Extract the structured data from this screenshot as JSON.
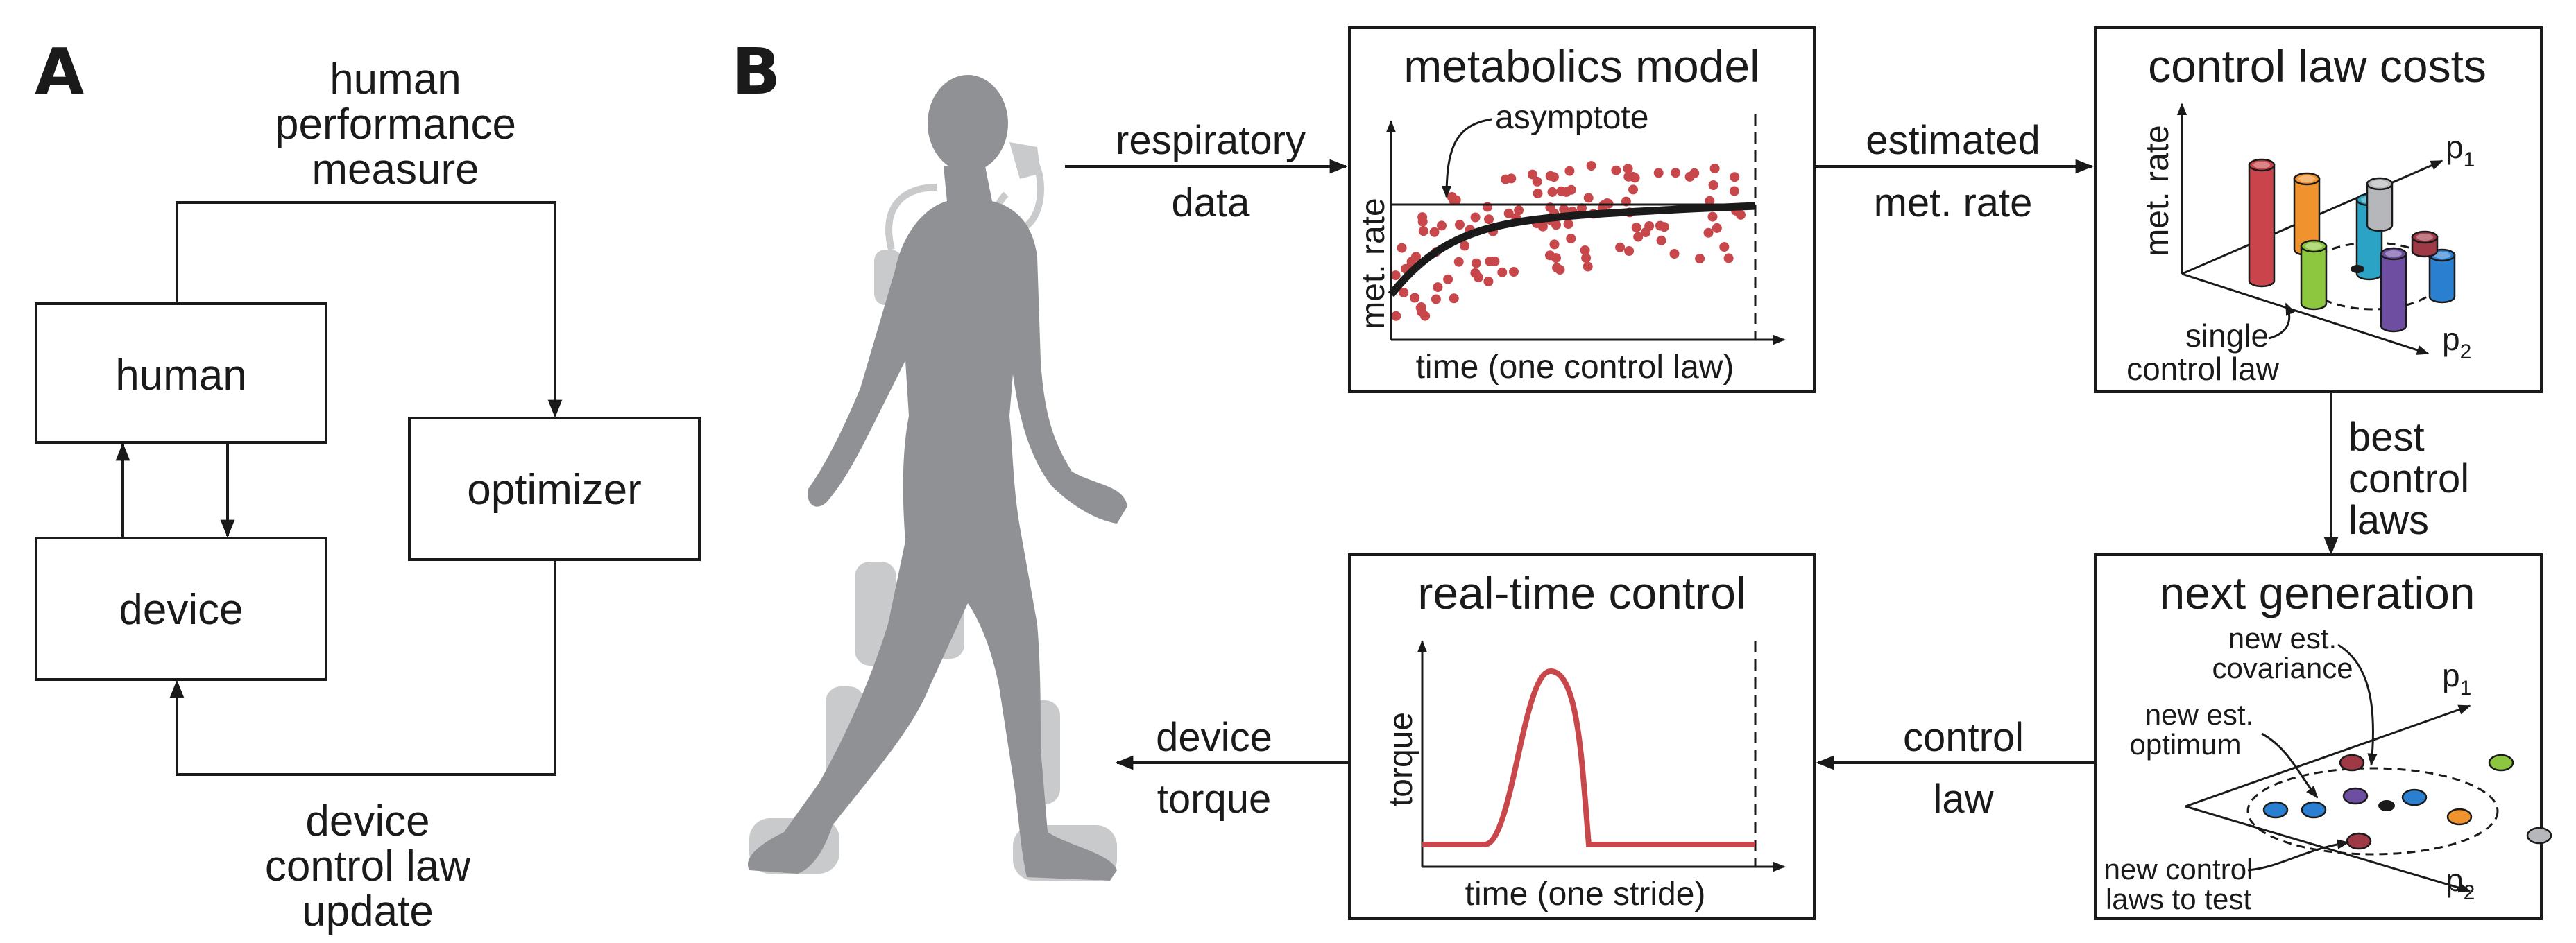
{
  "panel_a": {
    "letter": "A",
    "top_label": [
      "human",
      "performance",
      "measure"
    ],
    "human_box": "human",
    "device_box": "device",
    "optimizer_box": "optimizer",
    "bottom_label": [
      "device",
      "control law",
      "update"
    ]
  },
  "panel_b": {
    "letter": "B",
    "arrow_respiratory": [
      "respiratory",
      "data"
    ],
    "arrow_estimated": [
      "estimated",
      "met. rate"
    ],
    "arrow_best": [
      "best",
      "control",
      "laws"
    ],
    "arrow_control_law": [
      "control",
      "law"
    ],
    "arrow_device_torque": [
      "device",
      "torque"
    ],
    "metabolics": {
      "title": "metabolics model",
      "annotation": "asymptote",
      "ylabel": "met. rate",
      "xlabel": "time (one control law)"
    },
    "costs": {
      "title": "control law costs",
      "ylabel": "met. rate",
      "p1": "p",
      "p1_sub": "1",
      "p2": "p",
      "p2_sub": "2",
      "annotation": [
        "single",
        "control law"
      ]
    },
    "next_gen": {
      "title": "next generation",
      "ann_covariance": [
        "new est.",
        "covariance"
      ],
      "ann_optimum": [
        "new est.",
        "optimum"
      ],
      "ann_new_laws": [
        "new control",
        "laws to test"
      ],
      "p1": "p",
      "p1_sub": "1",
      "p2": "p",
      "p2_sub": "2"
    },
    "realtime": {
      "title": "real-time control",
      "ylabel": "torque",
      "xlabel": "time (one stride)"
    }
  },
  "colors": {
    "ink": "#1a1a1a",
    "data_red": "#c8474a",
    "figure_gray": "#8f9194",
    "halo_gray": "#c9cacc",
    "bar_red": "#c9444b",
    "bar_orange": "#f0922e",
    "bar_teal": "#2ba3c4",
    "bar_silver": "#b5b7ba",
    "bar_green": "#8dc63f",
    "bar_purple": "#6d4ea1",
    "bar_blue": "#2b7fd0",
    "bar_maroon": "#9e3945"
  }
}
